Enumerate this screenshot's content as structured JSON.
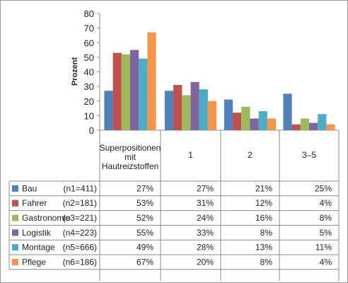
{
  "chart_data": {
    "type": "bar",
    "ylabel": "Prozent",
    "ylim": [
      0,
      80
    ],
    "yticks": [
      "0",
      "10",
      "20",
      "30",
      "40",
      "50",
      "60",
      "70",
      "80"
    ],
    "categories": [
      [
        "Superpositionen",
        "mit",
        "Hautreizstoffen"
      ],
      [
        "1"
      ],
      [
        "2"
      ],
      [
        "3–5"
      ]
    ],
    "series": [
      {
        "name": "Bau",
        "n": "(n1=411)",
        "color": "#4f81bd",
        "values": [
          27,
          27,
          21,
          25
        ],
        "labels": [
          "27%",
          "27%",
          "21%",
          "25%"
        ]
      },
      {
        "name": "Fahrer",
        "n": "(n2=181)",
        "color": "#c0504d",
        "values": [
          53,
          31,
          12,
          4
        ],
        "labels": [
          "53%",
          "31%",
          "12%",
          "4%"
        ]
      },
      {
        "name": "Gastronomie",
        "n": "(n3=221)",
        "color": "#9bbb59",
        "values": [
          52,
          24,
          16,
          8
        ],
        "labels": [
          "52%",
          "24%",
          "16%",
          "8%"
        ]
      },
      {
        "name": "Logistik",
        "n": "(n4=223)",
        "color": "#8064a2",
        "values": [
          55,
          33,
          8,
          5
        ],
        "labels": [
          "55%",
          "33%",
          "8%",
          "5%"
        ]
      },
      {
        "name": "Montage",
        "n": "(n5=666)",
        "color": "#4bacc6",
        "values": [
          49,
          28,
          13,
          11
        ],
        "labels": [
          "49%",
          "28%",
          "13%",
          "11%"
        ]
      },
      {
        "name": "Pflege",
        "n": "(n6=186)",
        "color": "#f79646",
        "values": [
          67,
          20,
          8,
          4
        ],
        "labels": [
          "67%",
          "20%",
          "8%",
          "4%"
        ]
      }
    ]
  }
}
